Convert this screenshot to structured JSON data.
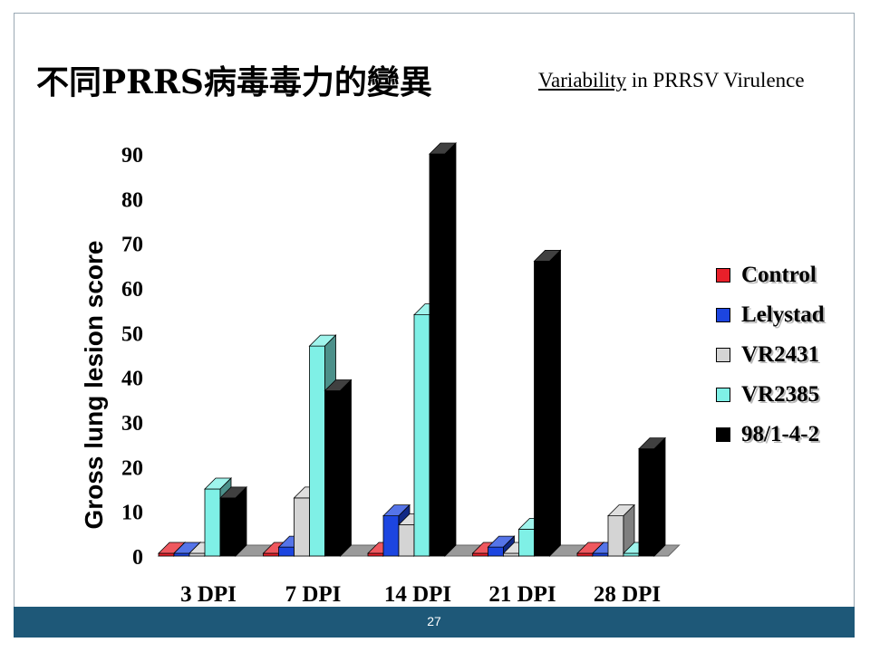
{
  "slide": {
    "title_zh": "不同PRRS病毒毒力的變異",
    "subtitle_underlined": "Variability",
    "subtitle_rest": " in PRRSV Virulence",
    "page_number": "27"
  },
  "colors": {
    "footer": "#1e5878",
    "series": [
      "#e8202a",
      "#1c45e0",
      "#d4d4d4",
      "#7ff0e6",
      "#000000"
    ]
  },
  "chart_data": {
    "type": "bar",
    "categories": [
      "3 DPI",
      "7 DPI",
      "14 DPI",
      "21 DPI",
      "28 DPI"
    ],
    "ylabel": "Gross lung lesion score",
    "ylim": [
      0,
      90
    ],
    "yticks": [
      "0",
      "10",
      "20",
      "30",
      "40",
      "50",
      "60",
      "70",
      "80",
      "90"
    ],
    "grid": false,
    "legend_position": "right",
    "series": [
      {
        "name": "Control",
        "values": [
          0,
          0,
          0,
          0,
          0
        ]
      },
      {
        "name": "Lelystad",
        "values": [
          0,
          2,
          9,
          2,
          0
        ]
      },
      {
        "name": "VR2431",
        "values": [
          0,
          13,
          7,
          0,
          9
        ]
      },
      {
        "name": "VR2385",
        "values": [
          15,
          47,
          54,
          6,
          0
        ]
      },
      {
        "name": "98/1-4-2",
        "values": [
          13,
          37,
          90,
          66,
          24
        ]
      }
    ]
  }
}
